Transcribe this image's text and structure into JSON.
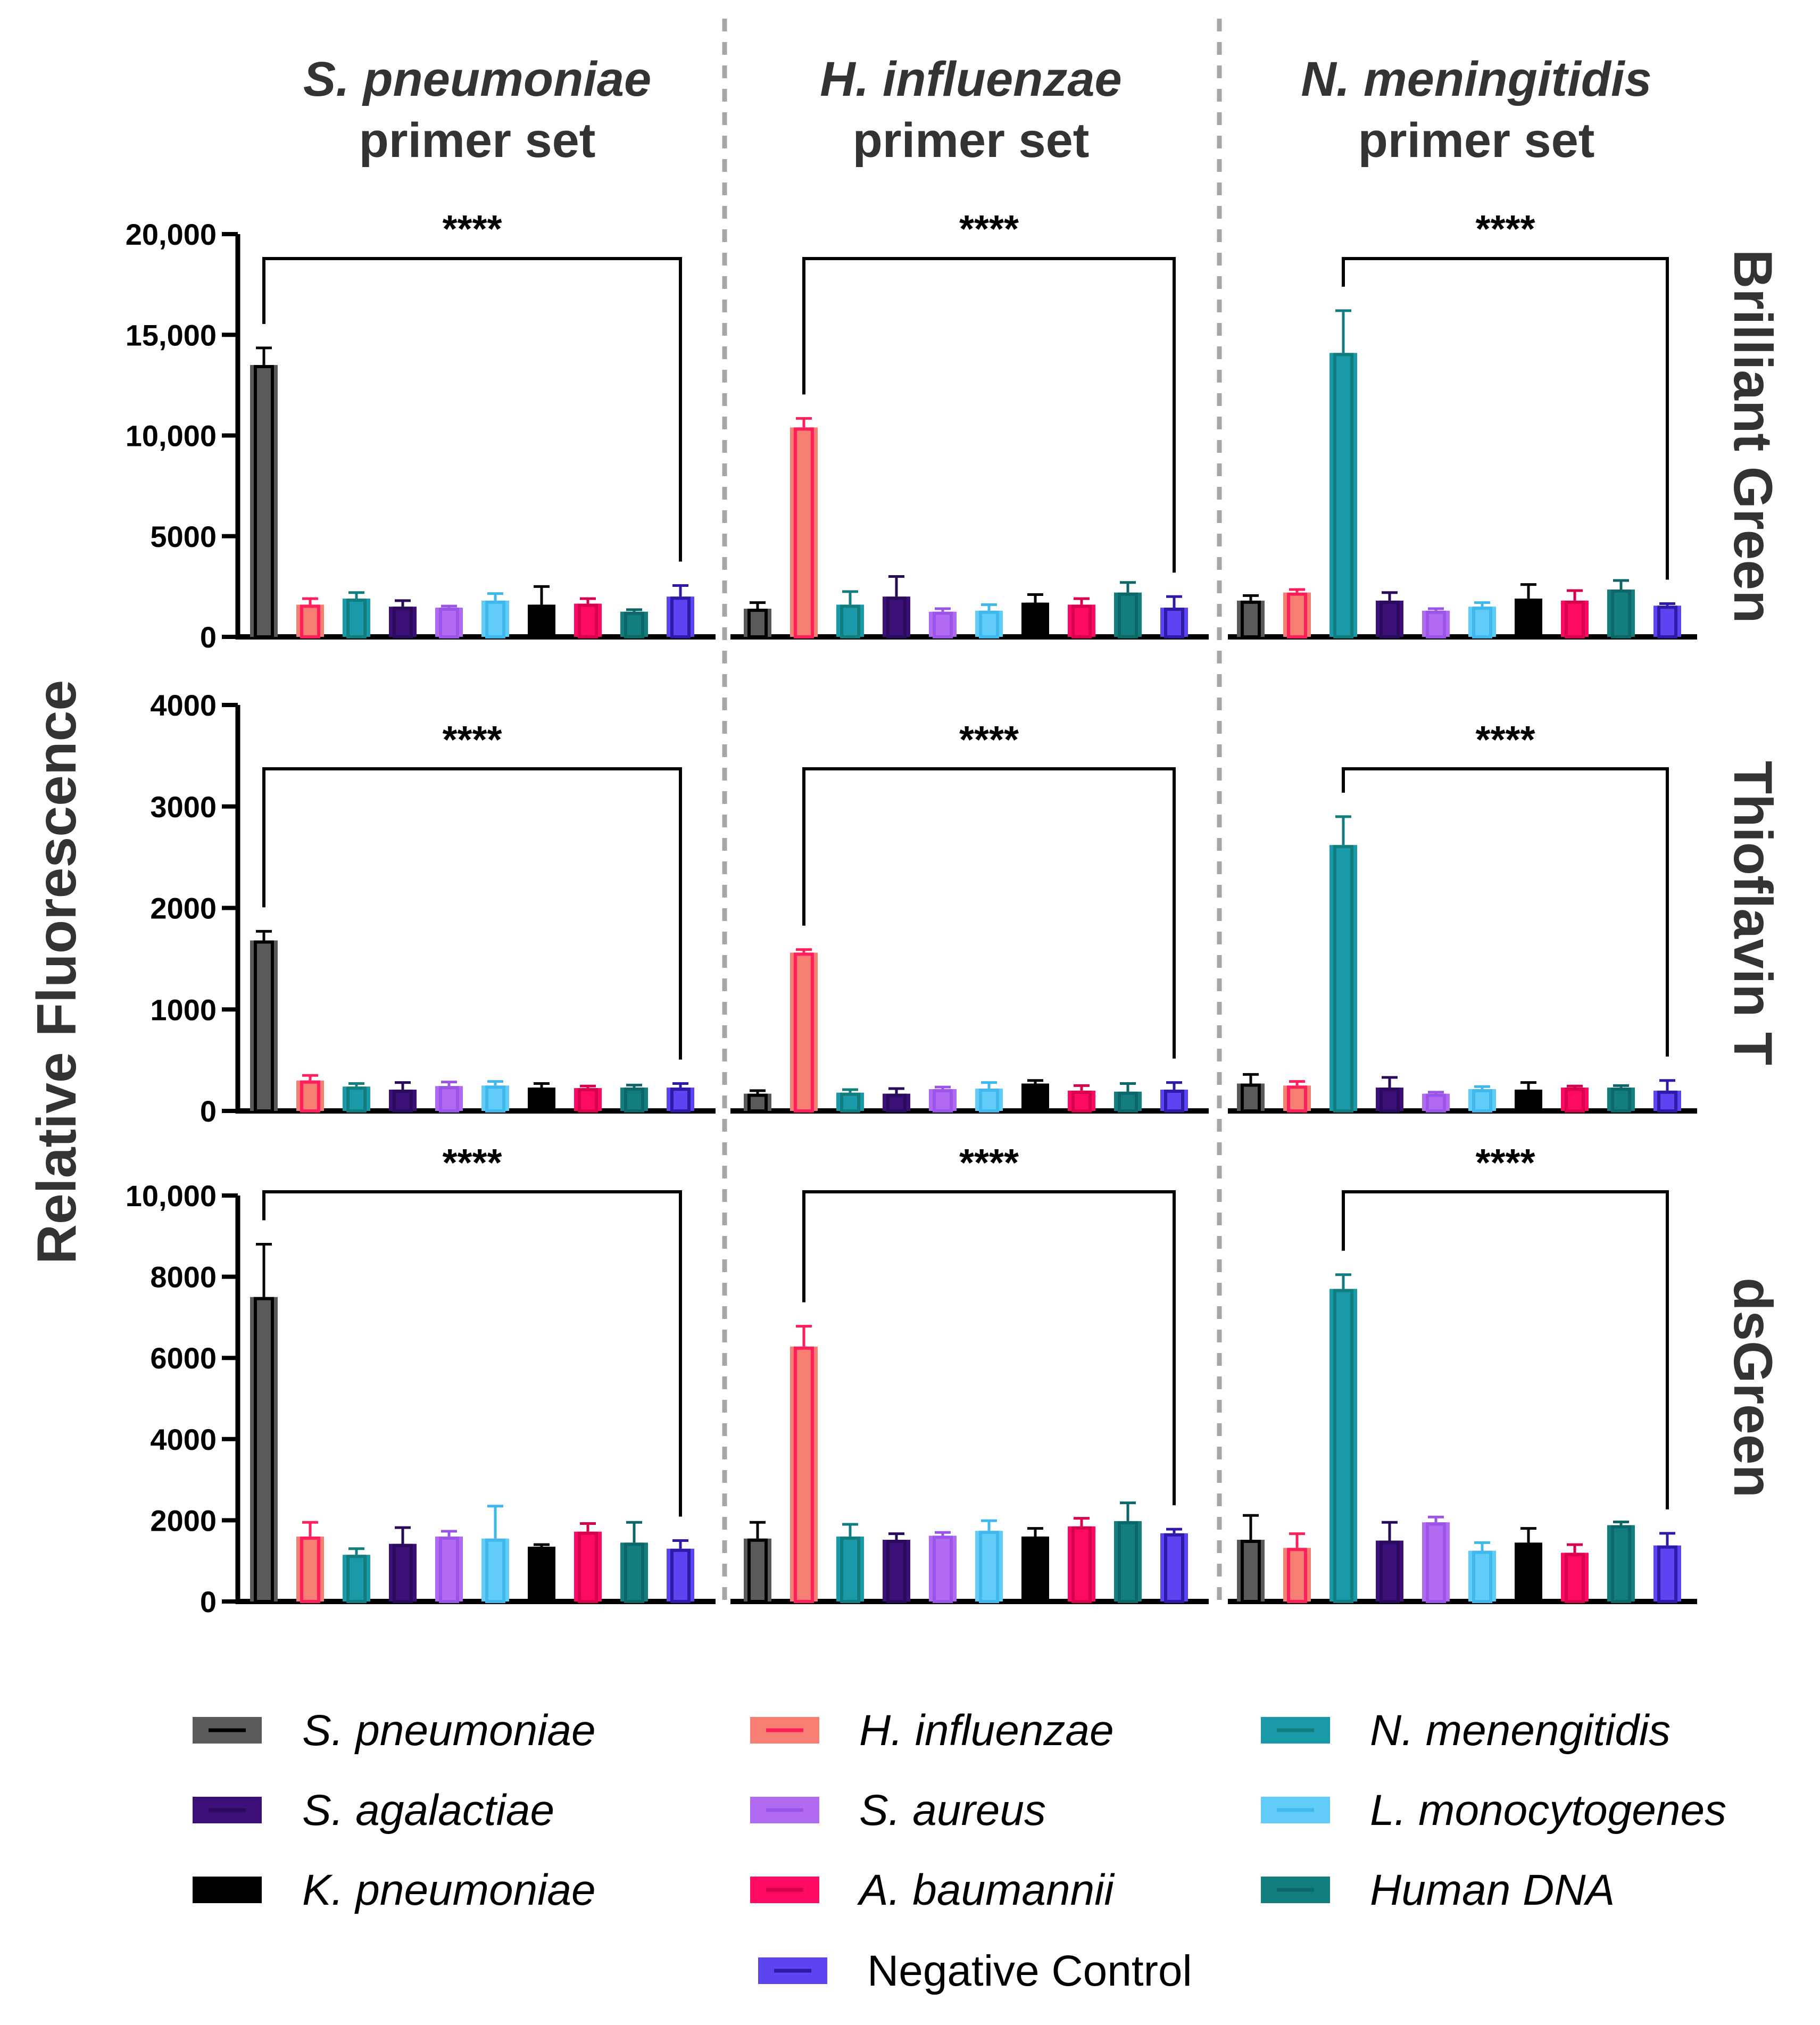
{
  "chart_data": {
    "type": "bar",
    "ylabel": "Relative Fluorescence",
    "column_titles": [
      {
        "species": "S. pneumoniae",
        "suffix": "primer set"
      },
      {
        "species": "H. influenzae",
        "suffix": "primer set"
      },
      {
        "species": "N. meningitidis",
        "suffix": "primer set"
      }
    ],
    "significance_label": "****",
    "categories": [
      "S. pneumoniae",
      "H. influenzae",
      "N. menengitidis",
      "S. agalactiae",
      "S. aureus",
      "L. monocytogenes",
      "K. pneumoniae",
      "A. baumannii",
      "Human DNA",
      "Negative Control"
    ],
    "category_italic": [
      true,
      true,
      true,
      true,
      true,
      true,
      true,
      true,
      true,
      false
    ],
    "category_colors": [
      "#5a5a5a",
      "#f77e72",
      "#1a99a8",
      "#3c0e78",
      "#b06bf2",
      "#62ccf9",
      "#000000",
      "#ff0a62",
      "#127d7f",
      "#5b45f0"
    ],
    "category_line_colors": [
      "#000000",
      "#ff1f5a",
      "#127d7f",
      "#2a0a5a",
      "#9a55e8",
      "#3fb8ee",
      "#000000",
      "#d8004e",
      "#0d6668",
      "#2c1aa8"
    ],
    "rows": [
      {
        "dye": "Brilliant Green",
        "ylim": [
          0,
          20000
        ],
        "yticks": [
          0,
          5000,
          10000,
          15000,
          20000
        ],
        "ytick_labels": [
          "0",
          "5000",
          "10,000",
          "15,000",
          "20,000"
        ],
        "panels": [
          {
            "values": [
              13500,
              1600,
              1900,
              1500,
              1450,
              1800,
              1600,
              1650,
              1250,
              2000
            ],
            "errors": [
              850,
              300,
              300,
              300,
              80,
              350,
              900,
              250,
              100,
              550
            ]
          },
          {
            "values": [
              1400,
              10400,
              1600,
              2000,
              1250,
              1300,
              1700,
              1600,
              2200,
              1450
            ],
            "errors": [
              300,
              450,
              650,
              1000,
              150,
              300,
              400,
              300,
              500,
              550
            ]
          },
          {
            "values": [
              1800,
              2200,
              14100,
              1800,
              1300,
              1500,
              1900,
              1800,
              2350,
              1550
            ],
            "errors": [
              250,
              150,
              2100,
              400,
              100,
              200,
              700,
              500,
              450,
              100
            ]
          }
        ]
      },
      {
        "dye": "Thioflavin T",
        "ylim": [
          0,
          4000
        ],
        "yticks": [
          0,
          1000,
          2000,
          3000,
          4000
        ],
        "ytick_labels": [
          "0",
          "1000",
          "2000",
          "3000",
          "4000"
        ],
        "panels": [
          {
            "values": [
              1680,
              300,
              240,
              210,
              245,
              250,
              230,
              225,
              230,
              230
            ],
            "errors": [
              90,
              50,
              30,
              70,
              40,
              40,
              40,
              20,
              25,
              40
            ]
          },
          {
            "values": [
              170,
              1560,
              180,
              170,
              215,
              220,
              270,
              200,
              190,
              210
            ],
            "errors": [
              30,
              30,
              30,
              50,
              20,
              60,
              30,
              50,
              80,
              70
            ]
          },
          {
            "values": [
              270,
              250,
              2620,
              230,
              170,
              215,
              210,
              230,
              230,
              200
            ],
            "errors": [
              90,
              40,
              280,
              100,
              15,
              25,
              70,
              15,
              20,
              100
            ]
          }
        ]
      },
      {
        "dye": "dsGreen",
        "ylim": [
          0,
          10000
        ],
        "yticks": [
          0,
          2000,
          4000,
          6000,
          8000,
          10000
        ],
        "ytick_labels": [
          "0",
          "2000",
          "4000",
          "6000",
          "8000",
          "10,000"
        ],
        "panels": [
          {
            "values": [
              7500,
              1600,
              1150,
              1420,
              1600,
              1550,
              1350,
              1720,
              1450,
              1300
            ],
            "errors": [
              1300,
              350,
              150,
              400,
              130,
              800,
              50,
              200,
              500,
              200
            ]
          },
          {
            "values": [
              1550,
              6280,
              1600,
              1520,
              1620,
              1740,
              1600,
              1850,
              1980,
              1680
            ],
            "errors": [
              400,
              500,
              300,
              150,
              80,
              250,
              200,
              200,
              450,
              100
            ]
          },
          {
            "values": [
              1520,
              1320,
              7700,
              1500,
              1950,
              1250,
              1450,
              1200,
              1880,
              1380
            ],
            "errors": [
              600,
              350,
              350,
              450,
              130,
              200,
              350,
              200,
              80,
              300
            ]
          }
        ]
      }
    ]
  }
}
